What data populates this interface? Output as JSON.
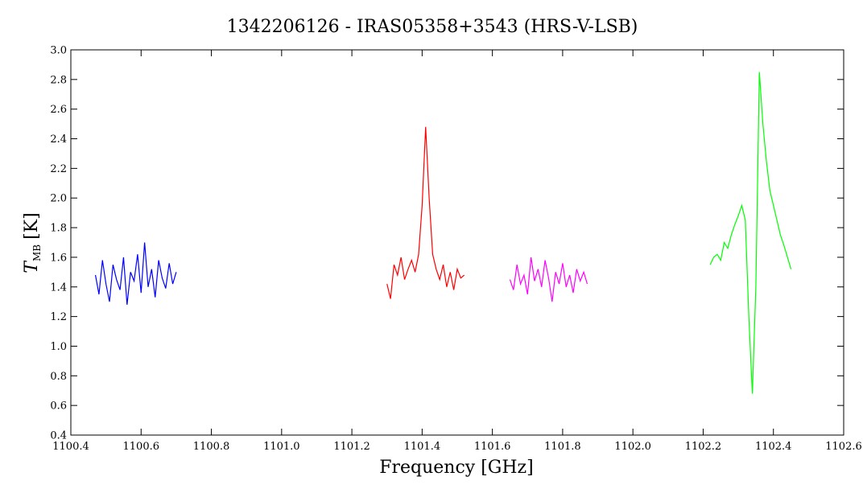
{
  "chart_data": {
    "type": "line",
    "title": "1342206126 - IRAS05358+3543 (HRS-V-LSB)",
    "x_label": "Frequency [GHz]",
    "y_label": "T",
    "y_label_sub": "MB",
    "y_label_unit": "[K]",
    "xlim": [
      1100.4,
      1102.6
    ],
    "xticks": [
      1100.4,
      1100.6,
      1100.8,
      {
        "value": 1101,
        "label": "1101.0"
      },
      1101.2,
      1101.4,
      1101.6,
      1101.8,
      {
        "value": 1102,
        "label": "1102.0"
      },
      1102.2,
      1102.4,
      1102.6
    ],
    "ylim": [
      0.4,
      3.0
    ],
    "yticks": [
      0.4,
      0.6,
      0.8,
      {
        "value": 1,
        "label": "1.0"
      },
      1.2,
      1.4,
      1.6,
      1.8,
      {
        "value": 2,
        "label": "2.0"
      },
      2.2,
      2.4,
      2.6,
      2.8,
      {
        "value": 3,
        "label": "3.0"
      }
    ],
    "series": [
      {
        "color": "#0000ff",
        "x": [
          1100.47,
          1100.48,
          1100.49,
          1100.5,
          1100.51,
          1100.52,
          1100.53,
          1100.54,
          1100.55,
          1100.56,
          1100.57,
          1100.58,
          1100.59,
          1100.6,
          1100.61,
          1100.62,
          1100.63,
          1100.64,
          1100.65,
          1100.66,
          1100.67,
          1100.68,
          1100.69,
          1100.7
        ],
        "values": [
          1.48,
          1.35,
          1.58,
          1.42,
          1.3,
          1.55,
          1.45,
          1.38,
          1.6,
          1.28,
          1.5,
          1.44,
          1.62,
          1.36,
          1.7,
          1.4,
          1.52,
          1.33,
          1.58,
          1.46,
          1.39,
          1.56,
          1.42,
          1.5
        ]
      },
      {
        "color": "#ff0000",
        "x": [
          1101.3,
          1101.31,
          1101.32,
          1101.33,
          1101.34,
          1101.35,
          1101.36,
          1101.37,
          1101.38,
          1101.39,
          1101.4,
          1101.41,
          1101.42,
          1101.43,
          1101.44,
          1101.45,
          1101.46,
          1101.47,
          1101.48,
          1101.49,
          1101.5,
          1101.51,
          1101.52
        ],
        "values": [
          1.42,
          1.32,
          1.55,
          1.48,
          1.6,
          1.45,
          1.52,
          1.58,
          1.5,
          1.62,
          1.95,
          2.48,
          2.0,
          1.62,
          1.52,
          1.45,
          1.55,
          1.4,
          1.5,
          1.38,
          1.52,
          1.46,
          1.48
        ]
      },
      {
        "color": "#ff00ff",
        "x": [
          1101.65,
          1101.66,
          1101.67,
          1101.68,
          1101.69,
          1101.7,
          1101.71,
          1101.72,
          1101.73,
          1101.74,
          1101.75,
          1101.76,
          1101.77,
          1101.78,
          1101.79,
          1101.8,
          1101.81,
          1101.82,
          1101.83,
          1101.84,
          1101.85,
          1101.86,
          1101.87
        ],
        "values": [
          1.45,
          1.38,
          1.55,
          1.42,
          1.48,
          1.35,
          1.6,
          1.44,
          1.52,
          1.4,
          1.58,
          1.46,
          1.3,
          1.5,
          1.42,
          1.56,
          1.4,
          1.48,
          1.36,
          1.52,
          1.44,
          1.5,
          1.42
        ]
      },
      {
        "color": "#00ff00",
        "x": [
          1102.22,
          1102.23,
          1102.24,
          1102.25,
          1102.26,
          1102.27,
          1102.28,
          1102.29,
          1102.3,
          1102.31,
          1102.32,
          1102.33,
          1102.34,
          1102.35,
          1102.36,
          1102.37,
          1102.38,
          1102.39,
          1102.4,
          1102.41,
          1102.42,
          1102.43,
          1102.44,
          1102.45
        ],
        "values": [
          1.55,
          1.6,
          1.62,
          1.58,
          1.7,
          1.66,
          1.75,
          1.82,
          1.88,
          1.95,
          1.85,
          1.2,
          0.68,
          1.4,
          2.85,
          2.5,
          2.25,
          2.05,
          1.95,
          1.85,
          1.75,
          1.68,
          1.6,
          1.52
        ]
      }
    ]
  }
}
